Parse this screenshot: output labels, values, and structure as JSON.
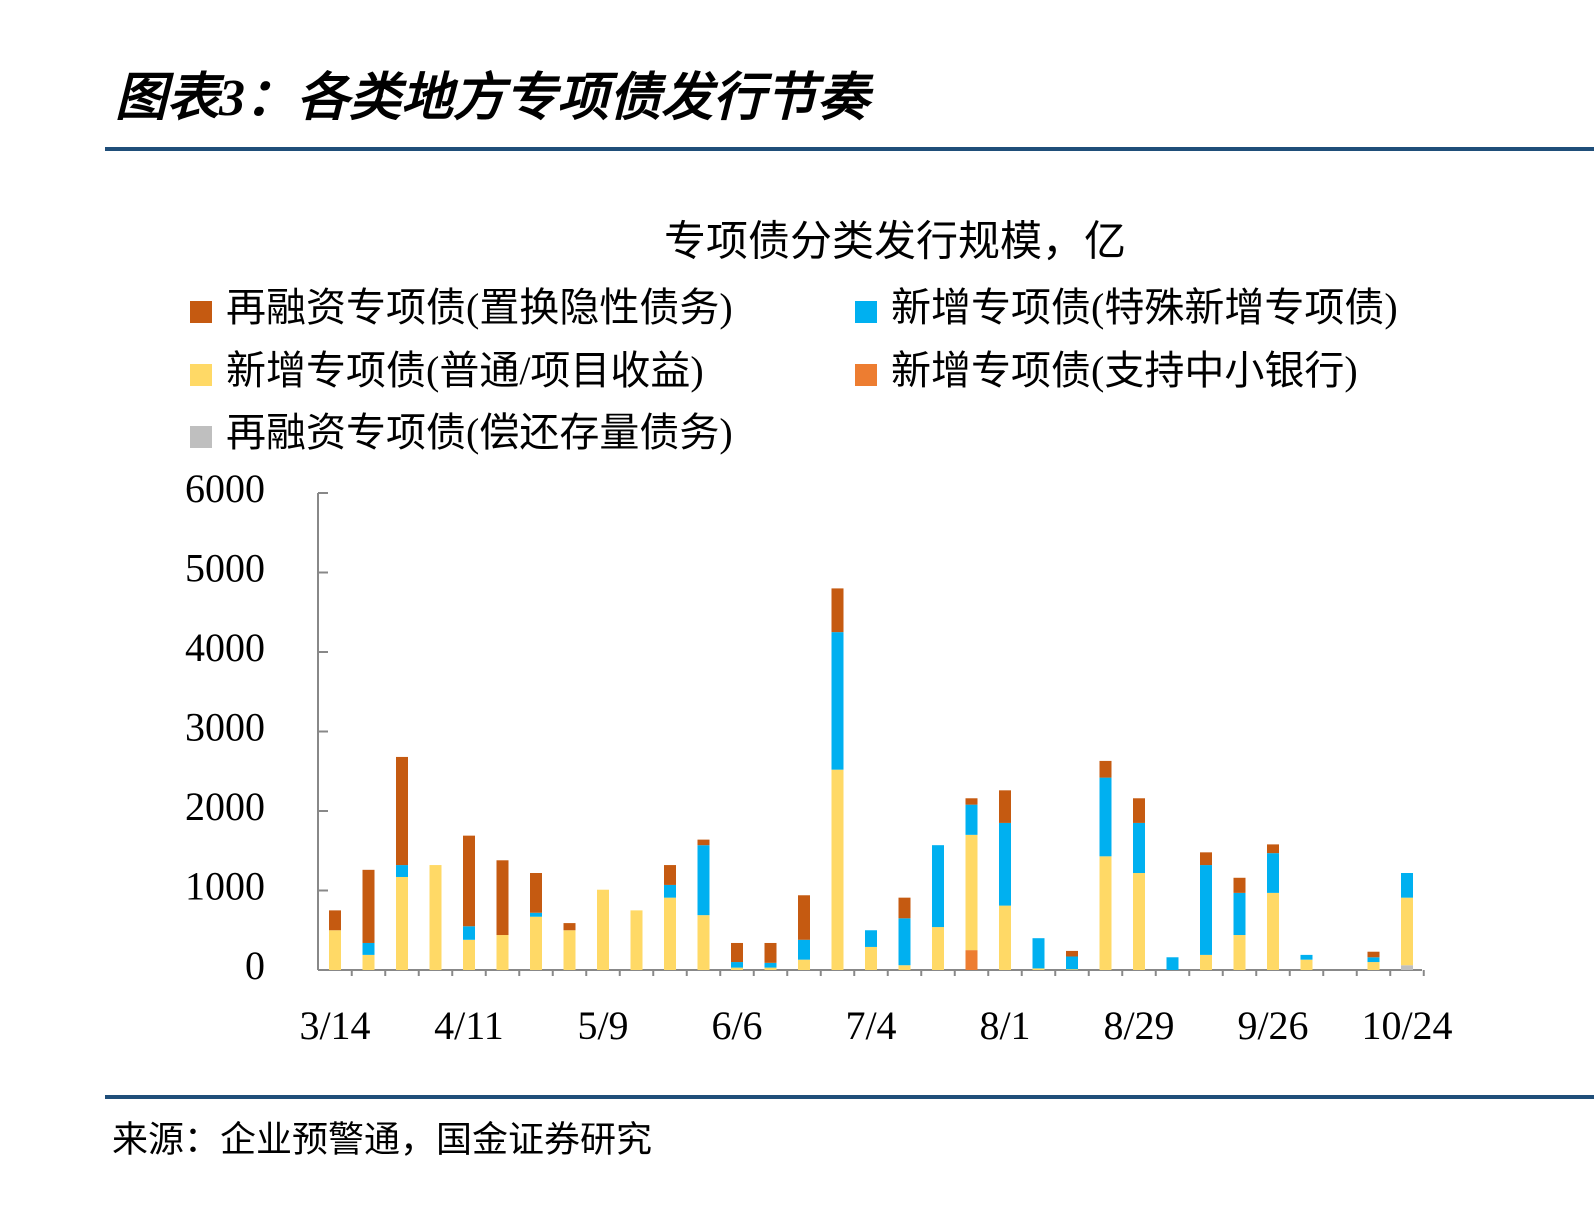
{
  "header": {
    "title": "图表3：各类地方专项债发行节奏"
  },
  "chart_data": {
    "type": "stacked-bar",
    "title": "专项债分类发行规模，亿",
    "categories": [
      "3/14",
      null,
      null,
      null,
      "4/11",
      null,
      null,
      null,
      "5/9",
      null,
      null,
      null,
      "6/6",
      null,
      null,
      null,
      "7/4",
      null,
      null,
      null,
      "8/1",
      null,
      null,
      null,
      "8/29",
      null,
      null,
      null,
      "9/26",
      null,
      null,
      null,
      "10/24"
    ],
    "series": [
      {
        "name": "再融资专项债(偿还存量债务)",
        "color": "#bfbfbf",
        "values": [
          0,
          0,
          0,
          0,
          0,
          0,
          0,
          0,
          0,
          0,
          0,
          0,
          0,
          0,
          0,
          0,
          0,
          0,
          0,
          0,
          0,
          0,
          0,
          0,
          0,
          0,
          0,
          0,
          0,
          0,
          0,
          0,
          60
        ]
      },
      {
        "name": "新增专项债(支持中小银行)",
        "color": "#ed7d31",
        "values": [
          0,
          0,
          0,
          0,
          0,
          0,
          0,
          0,
          0,
          0,
          0,
          0,
          0,
          0,
          0,
          0,
          0,
          0,
          0,
          250,
          0,
          0,
          0,
          0,
          0,
          0,
          0,
          0,
          0,
          0,
          0,
          0,
          0
        ]
      },
      {
        "name": "新增专项债(普通/项目收益)",
        "color": "#ffd966",
        "values": [
          500,
          190,
          1170,
          1320,
          380,
          440,
          670,
          500,
          1010,
          750,
          910,
          690,
          30,
          30,
          130,
          2520,
          290,
          60,
          540,
          1450,
          810,
          20,
          10,
          1430,
          1220,
          0,
          190,
          440,
          970,
          130,
          0,
          100,
          850
        ]
      },
      {
        "name": "新增专项债(特殊新增专项债)",
        "color": "#00b0f0",
        "values": [
          0,
          150,
          150,
          0,
          170,
          0,
          50,
          0,
          0,
          0,
          160,
          880,
          70,
          60,
          250,
          1730,
          210,
          590,
          1030,
          380,
          1040,
          380,
          160,
          990,
          630,
          160,
          1130,
          530,
          500,
          60,
          0,
          60,
          310
        ]
      },
      {
        "name": "再融资专项债(置换隐性债务)",
        "color": "#c55a11",
        "values": [
          250,
          920,
          1360,
          0,
          1140,
          940,
          500,
          90,
          0,
          0,
          250,
          70,
          240,
          250,
          560,
          550,
          0,
          260,
          0,
          80,
          410,
          0,
          70,
          210,
          310,
          0,
          160,
          190,
          110,
          0,
          0,
          70,
          0
        ]
      }
    ],
    "ylim": [
      0,
      6000
    ],
    "yticks": [
      0,
      1000,
      2000,
      3000,
      4000,
      5000,
      6000
    ]
  },
  "source": "来源：企业预警通，国金证券研究"
}
